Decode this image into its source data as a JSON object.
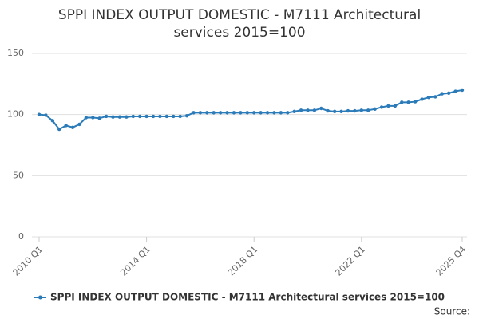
{
  "chart_data": {
    "type": "line",
    "title": "SPPI INDEX OUTPUT DOMESTIC - M7111 Architectural services 2015=100",
    "categories": [
      "2010 Q1",
      null,
      null,
      null,
      null,
      null,
      null,
      null,
      null,
      null,
      null,
      null,
      null,
      null,
      null,
      null,
      "2014 Q1",
      null,
      null,
      null,
      null,
      null,
      null,
      null,
      null,
      null,
      null,
      null,
      null,
      null,
      null,
      null,
      "2018 Q1",
      null,
      null,
      null,
      null,
      null,
      null,
      null,
      null,
      null,
      null,
      null,
      null,
      null,
      null,
      null,
      "2022 Q1",
      null,
      null,
      null,
      null,
      null,
      null,
      null,
      null,
      null,
      null,
      null,
      null,
      null,
      null,
      "2025 Q4"
    ],
    "series": [
      {
        "name": "SPPI INDEX OUTPUT DOMESTIC - M7111 Architectural services 2015=100",
        "color": "#2b7bb9",
        "values": [
          100,
          99.5,
          95,
          88,
          91,
          89.5,
          92,
          97.5,
          97.5,
          97,
          98.5,
          98,
          98,
          98,
          98.5,
          98.5,
          98.5,
          98.5,
          98.5,
          98.5,
          98.5,
          98.5,
          99,
          101.5,
          101.5,
          101.5,
          101.5,
          101.5,
          101.5,
          101.5,
          101.5,
          101.5,
          101.5,
          101.5,
          101.5,
          101.5,
          101.5,
          101.5,
          102.5,
          103.5,
          103.5,
          103.5,
          105,
          103,
          102.5,
          102.5,
          103,
          103,
          103.5,
          103.5,
          104.5,
          106,
          107,
          107,
          110,
          110,
          110.5,
          112.5,
          114,
          114.5,
          117,
          117.5,
          119,
          120
        ]
      }
    ],
    "ylim": [
      0,
      150
    ],
    "yticks": [
      0,
      50,
      100,
      150
    ],
    "grid": true,
    "source": "Source:"
  }
}
